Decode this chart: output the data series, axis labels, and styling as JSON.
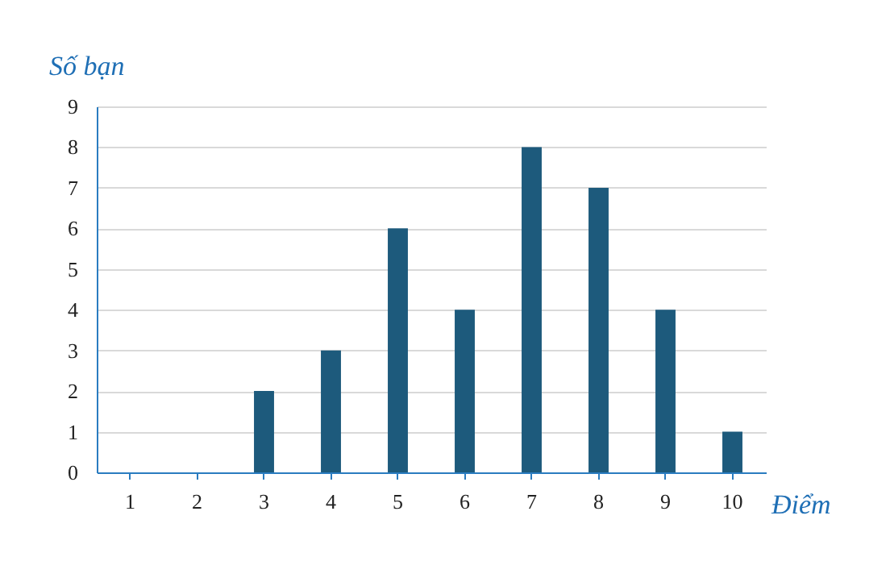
{
  "chart_data": {
    "type": "bar",
    "xlabel": "Điểm",
    "ylabel": "Số bạn",
    "categories": [
      "1",
      "2",
      "3",
      "4",
      "5",
      "6",
      "7",
      "8",
      "9",
      "10"
    ],
    "values": [
      0,
      0,
      2,
      3,
      6,
      4,
      8,
      7,
      4,
      1
    ],
    "color": "#1d5a7c",
    "ylim": [
      0,
      9
    ],
    "yticks": [
      0,
      1,
      2,
      3,
      4,
      5,
      6,
      7,
      8,
      9
    ],
    "grid": "y"
  }
}
